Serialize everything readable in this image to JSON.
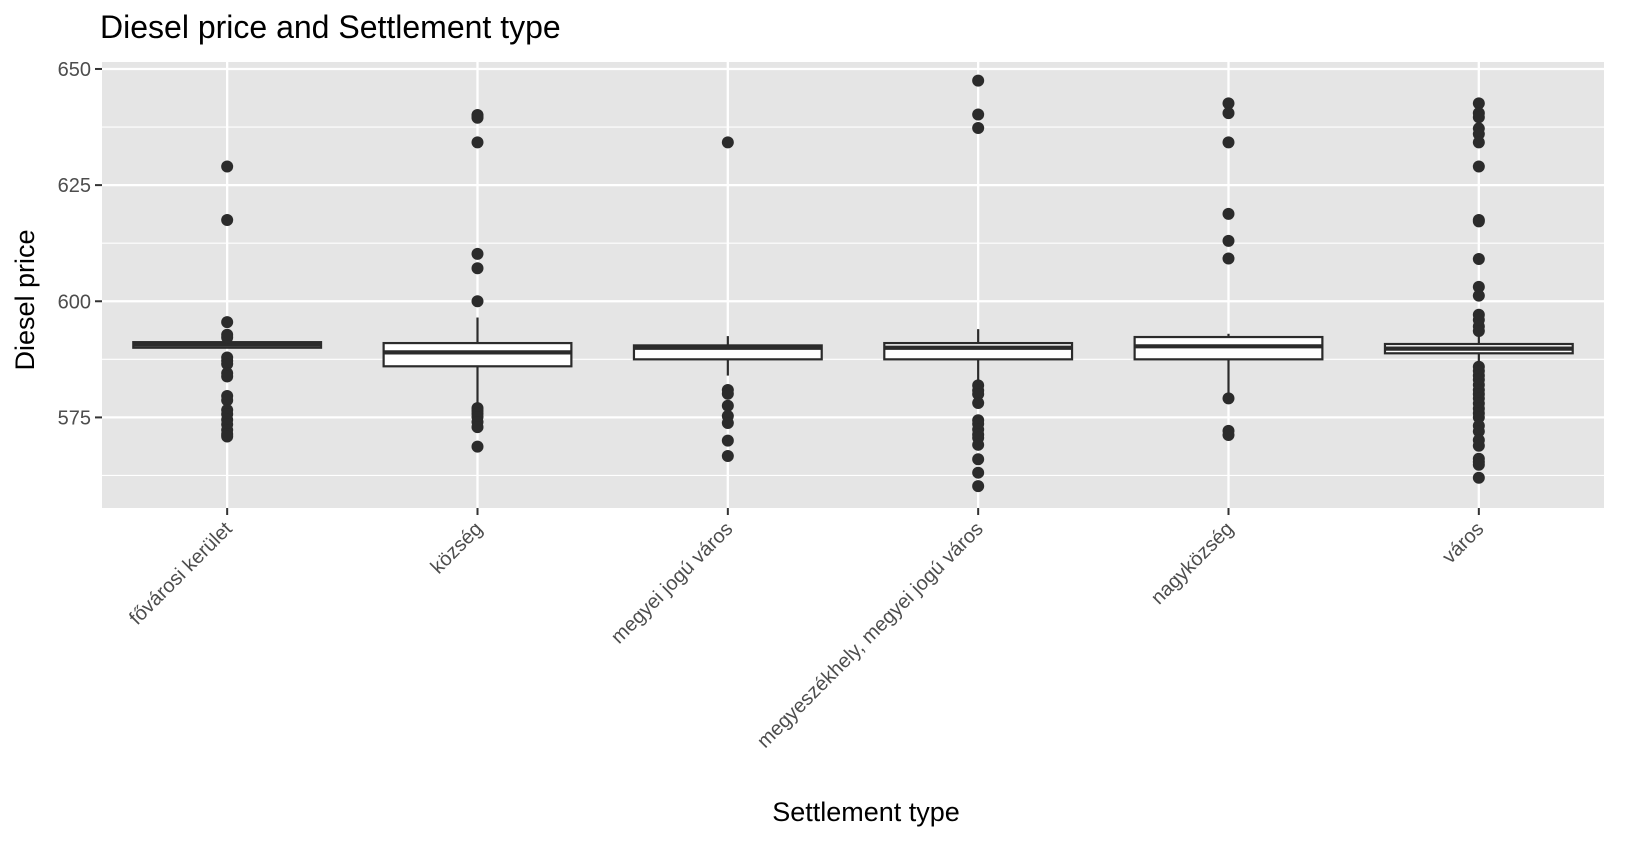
{
  "chart_data": {
    "type": "boxplot",
    "title": "Diesel price and Settlement type",
    "xlabel": "Settlement type",
    "ylabel": "Diesel price",
    "ylim": [
      555.5,
      651.5
    ],
    "yticks": [
      575,
      600,
      625,
      650
    ],
    "grid": true,
    "colors": {
      "panel": "#e5e5e5",
      "grid": "#ffffff",
      "box_fill": "#ffffff",
      "box_stroke": "#2b2b2b",
      "outlier": "#2b2b2b",
      "tick_text": "#4d4d4d"
    },
    "categories": [
      "fővárosi kerület",
      "község",
      "megyei jogú város",
      "megyeszékhely, megyei jogú város",
      "nagyközség",
      "város"
    ],
    "boxes": [
      {
        "category": "fővárosi kerület",
        "whisker_low": 590.0,
        "q1": 590.0,
        "median": 590.7,
        "q3": 591.2,
        "whisker_high": 591.4,
        "outliers": [
          629,
          617.5,
          595.5,
          592.8,
          592.2,
          587.9,
          587.2,
          586.5,
          584.5,
          583.8,
          579.6,
          578.7,
          576.6,
          575.7,
          574.5,
          573.5,
          572.3,
          571.4,
          570.9
        ]
      },
      {
        "category": "község",
        "whisker_low": 575.5,
        "q1": 586.0,
        "median": 589.0,
        "q3": 591.0,
        "whisker_high": 596.5,
        "outliers": [
          640.1,
          639.8,
          639.5,
          634.2,
          610.2,
          607.1,
          600.0,
          577.0,
          576.4,
          575.8,
          575.1,
          574.0,
          572.9,
          568.7
        ]
      },
      {
        "category": "megyei jogú város",
        "whisker_low": 584.0,
        "q1": 587.5,
        "median": 590.0,
        "q3": 590.5,
        "whisker_high": 592.5,
        "outliers": [
          634.2,
          580.9,
          580.1,
          577.5,
          575.3,
          573.8,
          570.0,
          566.7
        ]
      },
      {
        "category": "megyeszékhely, megyei jogú város",
        "whisker_low": 583.0,
        "q1": 587.5,
        "median": 590.0,
        "q3": 591.0,
        "whisker_high": 594.0,
        "outliers": [
          647.5,
          640.2,
          637.3,
          581.9,
          580.8,
          580.0,
          578.1,
          574.4,
          573.6,
          572.4,
          571.3,
          570.6,
          569.1,
          566.0,
          563.1,
          560.2
        ]
      },
      {
        "category": "nagyközség",
        "whisker_low": 580.0,
        "q1": 587.5,
        "median": 590.3,
        "q3": 592.3,
        "whisker_high": 593.0,
        "outliers": [
          642.6,
          640.5,
          634.2,
          618.8,
          613.0,
          609.2,
          579.1,
          572.1,
          571.2
        ]
      },
      {
        "category": "város",
        "whisker_low": 585.5,
        "q1": 588.8,
        "median": 589.8,
        "q3": 590.8,
        "whisker_high": 592.5,
        "outliers": [
          642.6,
          640.5,
          639.6,
          637.2,
          636.0,
          634.2,
          629.0,
          617.5,
          617.2,
          609.1,
          603.1,
          601.2,
          597.1,
          596.0,
          594.6,
          593.6,
          585.9,
          585.0,
          584.0,
          583.1,
          582.0,
          580.9,
          580.0,
          579.1,
          578.0,
          576.9,
          575.9,
          575.0,
          573.2,
          572.0,
          570.1,
          568.9,
          566.1,
          565.4,
          564.8,
          562.0
        ]
      }
    ]
  }
}
